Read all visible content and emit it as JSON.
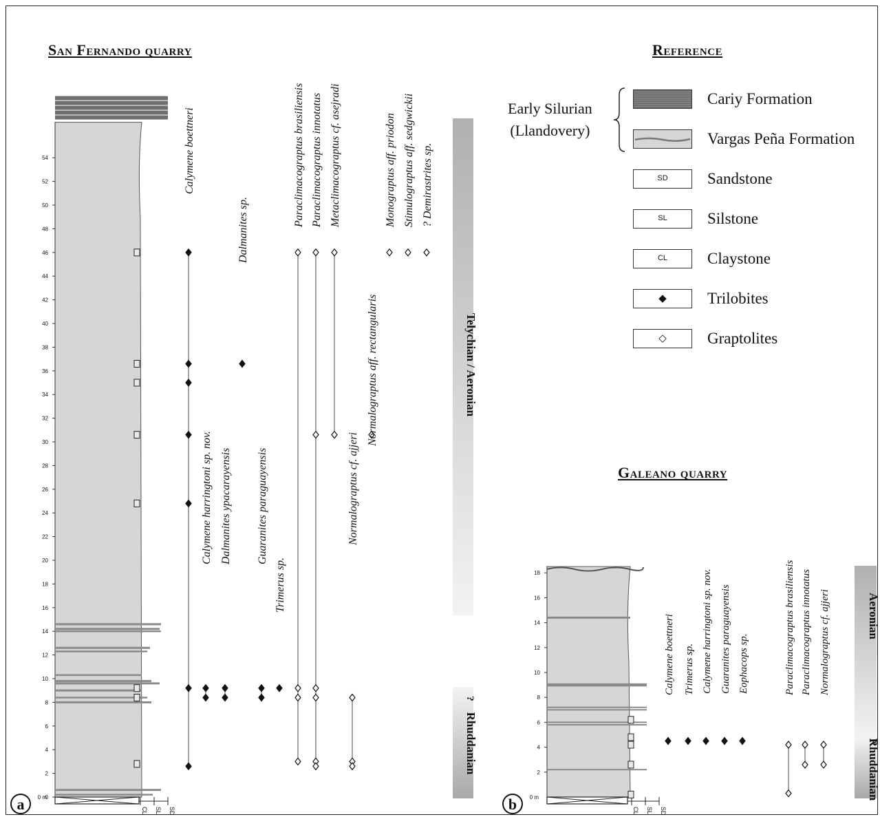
{
  "headings": {
    "san_fernando": "San Fernando quarry",
    "reference": "Reference",
    "galeano": "Galeano quarry"
  },
  "legend": {
    "age_line1": "Early Silurian",
    "age_line2": "(Llandovery)",
    "items": [
      {
        "box": "",
        "label": "Cariy Formation",
        "swatch": "cariy"
      },
      {
        "box": "",
        "label": "Vargas Peña Formation",
        "swatch": "vargas"
      },
      {
        "box": "SD",
        "label": "Sandstone",
        "swatch": "text"
      },
      {
        "box": "SL",
        "label": "Silstone",
        "swatch": "text"
      },
      {
        "box": "CL",
        "label": "Claystone",
        "swatch": "text"
      },
      {
        "box": "◆",
        "label": "Trilobites",
        "swatch": "text"
      },
      {
        "box": "◇",
        "label": "Graptolites",
        "swatch": "text"
      }
    ]
  },
  "panels": {
    "a": {
      "letter": "a",
      "scale_ticks": [
        0,
        2,
        4,
        6,
        8,
        10,
        12,
        14,
        16,
        18,
        20,
        22,
        24,
        26,
        28,
        30,
        32,
        34,
        36,
        38,
        40,
        42,
        44,
        46,
        48,
        50,
        52,
        54
      ],
      "zero_label": "0 m",
      "grain_labels": [
        "CL",
        "SL",
        "SD"
      ],
      "stage_upper": "Telychian  /  Aeronian",
      "stage_lower": "Rhuddanian",
      "stage_query": "?",
      "taxa": [
        {
          "name": "Calymene boettneri",
          "kind": "trilobite",
          "levels": [
            46,
            36.6,
            35,
            30.6,
            24.8,
            9.2,
            2.6
          ]
        },
        {
          "name": "Dalmanites sp.",
          "kind": "trilobite",
          "levels": [
            36.6
          ]
        },
        {
          "name": "Calymene harringtoni sp. nov.",
          "kind": "trilobite",
          "levels": [
            9.2,
            8.4
          ]
        },
        {
          "name": "Dalmanites ypacarayensis",
          "kind": "trilobite",
          "levels": [
            9.2,
            8.4
          ]
        },
        {
          "name": "Guaranites paraguayensis",
          "kind": "trilobite",
          "levels": [
            9.2,
            8.4
          ]
        },
        {
          "name": "Trimerus sp.",
          "kind": "trilobite",
          "levels": [
            9.2
          ]
        },
        {
          "name": "Paraclimacograptus brasiliensis",
          "kind": "graptolite",
          "levels": [
            46,
            9.2,
            8.4,
            3
          ]
        },
        {
          "name": "Paraclimacograptus innotatus",
          "kind": "graptolite",
          "levels": [
            46,
            30.6,
            9.2,
            8.4,
            3,
            2.6
          ]
        },
        {
          "name": "Metaclimacograptus cf. asejradi",
          "kind": "graptolite",
          "levels": [
            46,
            30.6
          ]
        },
        {
          "name": "Normalograptus cf. ajjeri",
          "kind": "graptolite",
          "levels": [
            8.4,
            3,
            2.6
          ]
        },
        {
          "name": "Normalograptus aff. rectangularis",
          "kind": "graptolite",
          "levels": [
            30.6
          ]
        },
        {
          "name": "Monograptus aff. priodon",
          "kind": "graptolite",
          "levels": [
            46
          ]
        },
        {
          "name": "Stimulograptus aff. sedgwickii",
          "kind": "graptolite",
          "levels": [
            46
          ]
        },
        {
          "name": "? Demirastrites sp.",
          "kind": "graptolite",
          "levels": [
            46
          ]
        }
      ]
    },
    "b": {
      "letter": "b",
      "scale_ticks": [
        2,
        4,
        6,
        8,
        10,
        12,
        14,
        16,
        18
      ],
      "zero_label": "0 m",
      "grain_labels": [
        "CL",
        "SL",
        "SD"
      ],
      "stage_upper": "Aeronian",
      "stage_lower": "Rhuddanian",
      "stage_query": "?",
      "taxa": [
        {
          "name": "Calymene boettneri",
          "kind": "trilobite",
          "levels": [
            4.5
          ]
        },
        {
          "name": "Trimerus sp.",
          "kind": "trilobite",
          "levels": [
            4.5
          ]
        },
        {
          "name": "Calymene harringtoni sp. nov.",
          "kind": "trilobite",
          "levels": [
            4.5
          ]
        },
        {
          "name": "Guaranites paraguayensis",
          "kind": "trilobite",
          "levels": [
            4.5
          ]
        },
        {
          "name": "Eophacops sp.",
          "kind": "trilobite",
          "levels": [
            4.5
          ]
        },
        {
          "name": "Paraclimacograptus brasiliensis",
          "kind": "graptolite",
          "levels": [
            4.2,
            0.3
          ]
        },
        {
          "name": "Paraclimacograptus innotatus",
          "kind": "graptolite",
          "levels": [
            4.2,
            2.6
          ]
        },
        {
          "name": "Normalograptus cf. ajjeri",
          "kind": "graptolite",
          "levels": [
            4.2,
            2.6
          ]
        }
      ]
    }
  }
}
